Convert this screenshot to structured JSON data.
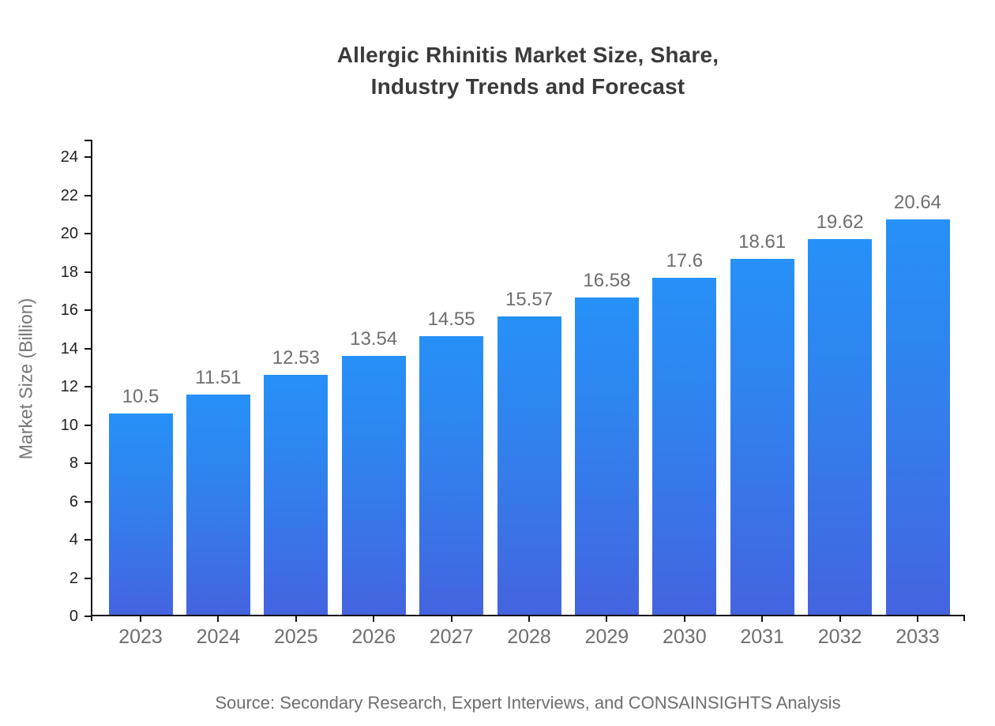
{
  "chart_data": {
    "type": "bar",
    "title": "Allergic Rhinitis Market Size, Share,\nIndustry Trends and Forecast",
    "xlabel": "",
    "ylabel": "Market Size (Billion)",
    "source": "Source: Secondary Research, Expert Interviews, and CONSAINSIGHTS Analysis",
    "categories": [
      "2023",
      "2024",
      "2025",
      "2026",
      "2027",
      "2028",
      "2029",
      "2030",
      "2031",
      "2032",
      "2033"
    ],
    "values": [
      10.5,
      11.51,
      12.53,
      13.54,
      14.55,
      15.57,
      16.58,
      17.6,
      18.61,
      19.62,
      20.64
    ],
    "value_labels": [
      "10.5",
      "11.51",
      "12.53",
      "13.54",
      "14.55",
      "15.57",
      "16.58",
      "17.6",
      "18.61",
      "19.62",
      "20.64"
    ],
    "ylim": [
      0,
      24
    ],
    "ytick_step": 2,
    "yticks": [
      0,
      2,
      4,
      6,
      8,
      10,
      12,
      14,
      16,
      18,
      20,
      22,
      24
    ],
    "grid": false,
    "legend_position": "none",
    "colors": {
      "bar_gradient_top": "#2691F8",
      "bar_gradient_bottom": "#4464DF",
      "axis": "#111111",
      "y_tick_label": "#1f1f1f",
      "category_label": "#6e6e6e",
      "value_label": "#6e6e6e",
      "title": "#3a3a3a",
      "axis_title": "#757575",
      "source": "#6e6e6e",
      "background": "#ffffff"
    }
  }
}
